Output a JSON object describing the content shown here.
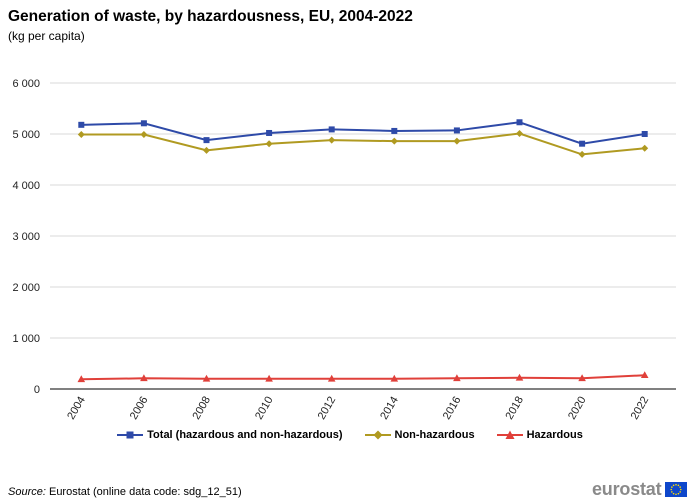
{
  "title": "Generation of waste, by hazardousness, EU, 2004-2022",
  "subtitle": "(kg per capita)",
  "source_label": "Source:",
  "source_text": " Eurostat (online data code: sdg_12_51)",
  "logo_text": "eurostat",
  "colors": {
    "total": "#2e4aa8",
    "non_hazardous": "#b09a21",
    "hazardous": "#e0403a",
    "grid": "#d9d9d9",
    "axis": "#000000"
  },
  "chart_data": {
    "type": "line",
    "categories": [
      "2004",
      "2006",
      "2008",
      "2010",
      "2012",
      "2014",
      "2016",
      "2018",
      "2020",
      "2022"
    ],
    "ylim": [
      0,
      6000
    ],
    "yticks": [
      0,
      1000,
      2000,
      3000,
      4000,
      5000,
      6000
    ],
    "ytick_labels": [
      "0",
      "1 000",
      "2 000",
      "3 000",
      "4 000",
      "5 000",
      "6 000"
    ],
    "grid": true,
    "legend_position": "bottom",
    "series": [
      {
        "name": "Total (hazardous and non-hazardous)",
        "marker": "square",
        "values": [
          5180,
          5210,
          4880,
          5020,
          5090,
          5060,
          5070,
          5230,
          4810,
          5000
        ]
      },
      {
        "name": "Non-hazardous",
        "marker": "diamond",
        "values": [
          4990,
          4990,
          4680,
          4810,
          4880,
          4860,
          4860,
          5010,
          4600,
          4720
        ]
      },
      {
        "name": "Hazardous",
        "marker": "triangle",
        "values": [
          190,
          210,
          200,
          200,
          200,
          200,
          210,
          220,
          210,
          270
        ]
      }
    ]
  }
}
